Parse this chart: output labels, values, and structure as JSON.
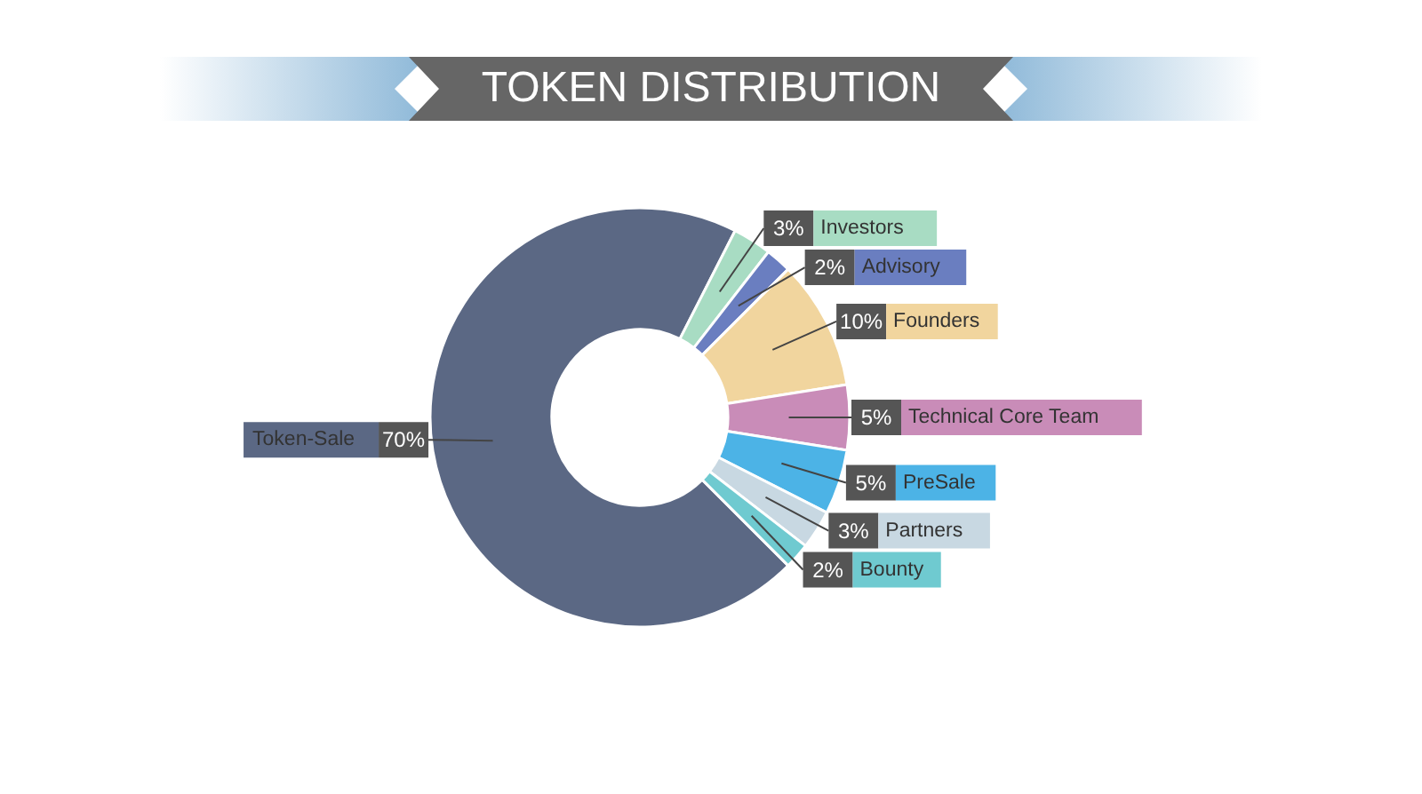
{
  "chart_data": {
    "type": "donut",
    "title": "TOKEN DISTRIBUTION",
    "categories": [
      "Token-Sale",
      "Investors",
      "Advisory",
      "Founders",
      "Technical Core Team",
      "PreSale",
      "Partners",
      "Bounty"
    ],
    "values": [
      70,
      3,
      2,
      10,
      5,
      5,
      3,
      2
    ],
    "value_labels": [
      "70%",
      "3%",
      "2%",
      "10%",
      "5%",
      "5%",
      "3%",
      "2%"
    ],
    "colors": [
      "#5b6884",
      "#a8dcc3",
      "#6a7ec0",
      "#f1d59e",
      "#c98cb8",
      "#4cb3e6",
      "#c8d8e2",
      "#6fcad0"
    ]
  }
}
